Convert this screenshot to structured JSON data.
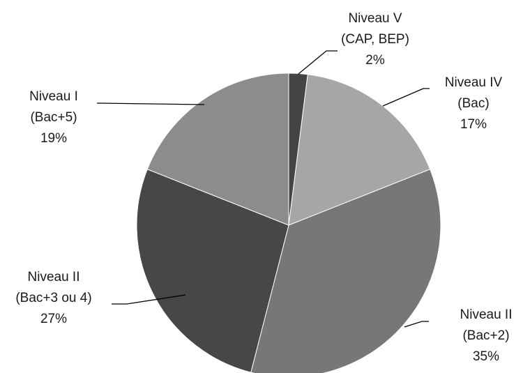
{
  "chart_data": {
    "type": "pie",
    "title": "",
    "slices": [
      {
        "lines": [
          "Niveau V",
          "(CAP, BEP)"
        ],
        "percent_label": "2%",
        "value": 2,
        "color": "#444444"
      },
      {
        "lines": [
          "Niveau IV",
          "(Bac)"
        ],
        "percent_label": "17%",
        "value": 17,
        "color": "#a6a6a6"
      },
      {
        "lines": [
          "Niveau II",
          "(Bac+2)"
        ],
        "percent_label": "35%",
        "value": 35,
        "color": "#777777"
      },
      {
        "lines": [
          "Niveau II",
          "(Bac+3 ou 4)"
        ],
        "percent_label": "27%",
        "value": 27,
        "color": "#474747"
      },
      {
        "lines": [
          "Niveau I",
          "(Bac+5)"
        ],
        "percent_label": "19%",
        "value": 19,
        "color": "#8c8c8c"
      }
    ]
  }
}
